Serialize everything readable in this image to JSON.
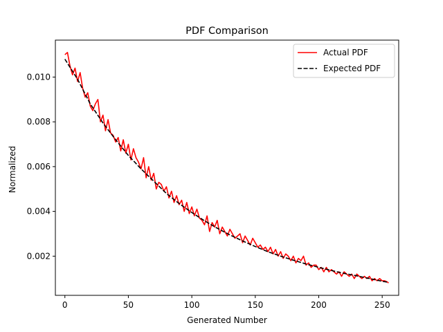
{
  "chart_data": {
    "type": "line",
    "title": "PDF Comparison",
    "xlabel": "Generated Number",
    "ylabel": "Normalized",
    "xlim": [
      -7.5,
      263
    ],
    "ylim": [
      0.00025,
      0.01165
    ],
    "xticks": [
      0,
      50,
      100,
      150,
      200,
      250
    ],
    "yticks": [
      0.002,
      0.004,
      0.006,
      0.008,
      0.01
    ],
    "ytick_labels": [
      "0.002",
      "0.004",
      "0.006",
      "0.008",
      "0.010"
    ],
    "grid": false,
    "legend_position": "upper right",
    "series": [
      {
        "name": "Actual PDF",
        "color": "#ff0000",
        "style": "solid",
        "x": [
          0,
          2,
          4,
          6,
          8,
          10,
          12,
          14,
          16,
          18,
          20,
          22,
          24,
          26,
          28,
          30,
          32,
          34,
          36,
          38,
          40,
          42,
          44,
          46,
          48,
          50,
          52,
          54,
          56,
          58,
          60,
          62,
          64,
          66,
          68,
          70,
          72,
          74,
          76,
          78,
          80,
          82,
          84,
          86,
          88,
          90,
          92,
          94,
          96,
          98,
          100,
          102,
          104,
          106,
          108,
          110,
          112,
          114,
          116,
          118,
          120,
          122,
          124,
          126,
          128,
          130,
          132,
          134,
          136,
          138,
          140,
          142,
          144,
          146,
          148,
          150,
          152,
          154,
          156,
          158,
          160,
          162,
          164,
          166,
          168,
          170,
          172,
          174,
          176,
          178,
          180,
          182,
          184,
          186,
          188,
          190,
          192,
          194,
          196,
          198,
          200,
          202,
          204,
          206,
          208,
          210,
          212,
          214,
          216,
          218,
          220,
          222,
          224,
          226,
          228,
          230,
          232,
          234,
          236,
          238,
          240,
          242,
          244,
          246,
          248,
          250,
          252,
          254,
          255
        ],
        "y": [
          0.011,
          0.0111,
          0.0105,
          0.0101,
          0.0104,
          0.0098,
          0.0102,
          0.0095,
          0.0091,
          0.0093,
          0.0087,
          0.0085,
          0.0088,
          0.009,
          0.008,
          0.0083,
          0.0076,
          0.0081,
          0.0075,
          0.0074,
          0.0071,
          0.0073,
          0.0067,
          0.0072,
          0.0066,
          0.007,
          0.0063,
          0.0068,
          0.0064,
          0.0062,
          0.0059,
          0.0064,
          0.0055,
          0.006,
          0.0054,
          0.0057,
          0.005,
          0.0053,
          0.0052,
          0.0049,
          0.0051,
          0.0046,
          0.0049,
          0.0044,
          0.0047,
          0.0043,
          0.0045,
          0.004,
          0.0044,
          0.0039,
          0.0042,
          0.0038,
          0.0041,
          0.0037,
          0.0036,
          0.0034,
          0.0038,
          0.0031,
          0.0035,
          0.0033,
          0.0036,
          0.003,
          0.0033,
          0.0031,
          0.0029,
          0.0032,
          0.003,
          0.0028,
          0.0029,
          0.003,
          0.0026,
          0.0029,
          0.0027,
          0.0025,
          0.0028,
          0.0026,
          0.0024,
          0.0025,
          0.0023,
          0.0024,
          0.0022,
          0.0024,
          0.0021,
          0.0023,
          0.002,
          0.0022,
          0.0019,
          0.0021,
          0.002,
          0.0018,
          0.002,
          0.0017,
          0.0019,
          0.0018,
          0.002,
          0.0016,
          0.0017,
          0.0015,
          0.0016,
          0.0016,
          0.0014,
          0.0015,
          0.0013,
          0.0015,
          0.0013,
          0.0014,
          0.0013,
          0.0012,
          0.0013,
          0.0011,
          0.0013,
          0.0012,
          0.0011,
          0.0012,
          0.001,
          0.0012,
          0.0011,
          0.001,
          0.0011,
          0.001,
          0.0011,
          0.0009,
          0.001,
          0.0009,
          0.001,
          0.0009,
          0.0009,
          0.00085,
          0.0008
        ]
      },
      {
        "name": "Expected PDF",
        "color": "#000000",
        "style": "dashed",
        "x": [
          0,
          10,
          20,
          30,
          40,
          50,
          60,
          70,
          80,
          90,
          100,
          110,
          120,
          130,
          140,
          150,
          160,
          170,
          180,
          190,
          200,
          210,
          220,
          230,
          240,
          250,
          255
        ],
        "y": [
          0.0108,
          0.0099,
          0.0088,
          0.00795,
          0.0072,
          0.0065,
          0.0059,
          0.00535,
          0.0048,
          0.00435,
          0.00395,
          0.00358,
          0.00325,
          0.00295,
          0.00268,
          0.00243,
          0.0022,
          0.002,
          0.00182,
          0.00165,
          0.0015,
          0.00136,
          0.00123,
          0.00112,
          0.001,
          0.00088,
          0.00083
        ]
      }
    ]
  }
}
